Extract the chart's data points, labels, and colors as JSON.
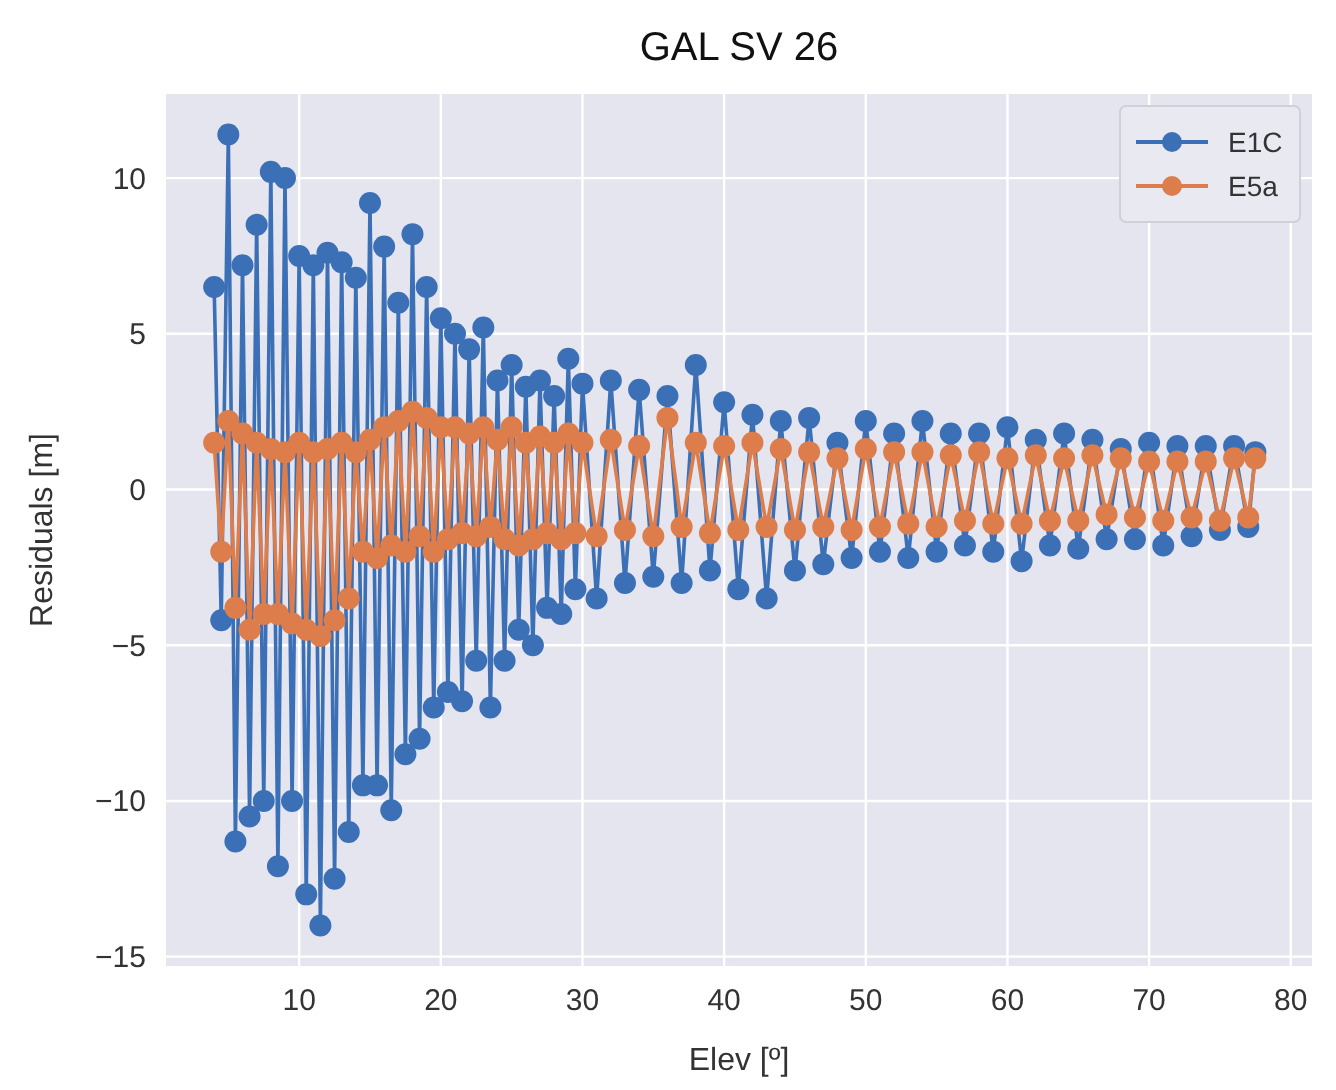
{
  "chart_data": {
    "type": "line",
    "title": "GAL SV 26",
    "xlabel": "Elev [º]",
    "ylabel": "Residuals [m]",
    "x": [
      4,
      4.5,
      5,
      5.5,
      6,
      6.5,
      7,
      7.5,
      8,
      8.5,
      9,
      9.5,
      10,
      10.5,
      11,
      11.5,
      12,
      12.5,
      13,
      13.5,
      14,
      14.5,
      15,
      15.5,
      16,
      16.5,
      17,
      17.5,
      18,
      18.5,
      19,
      19.5,
      20,
      20.5,
      21,
      21.5,
      22,
      22.5,
      23,
      23.5,
      24,
      24.5,
      25,
      25.5,
      26,
      26.5,
      27,
      27.5,
      28,
      28.5,
      29,
      29.5,
      30,
      31,
      32,
      33,
      34,
      35,
      36,
      37,
      38,
      39,
      40,
      41,
      42,
      43,
      44,
      45,
      46,
      47,
      48,
      49,
      50,
      51,
      52,
      53,
      54,
      55,
      56,
      57,
      58,
      59,
      60,
      61,
      62,
      63,
      64,
      65,
      66,
      67,
      68,
      69,
      70,
      71,
      72,
      73,
      74,
      75,
      76,
      77,
      77.5
    ],
    "series": [
      {
        "name": "E1C",
        "color": "#3b6fb6",
        "values": [
          6.5,
          -4.2,
          11.4,
          -11.3,
          7.2,
          -10.5,
          8.5,
          -10,
          10.2,
          -12.1,
          10,
          -10,
          7.5,
          -13,
          7.2,
          -14,
          7.6,
          -12.5,
          7.3,
          -11,
          6.8,
          -9.5,
          9.2,
          -9.5,
          7.8,
          -10.3,
          6,
          -8.5,
          8.2,
          -8,
          6.5,
          -7,
          5.5,
          -6.5,
          5,
          -6.8,
          4.5,
          -5.5,
          5.2,
          -7,
          3.5,
          -5.5,
          4,
          -4.5,
          3.3,
          -5,
          3.5,
          -3.8,
          3,
          -4,
          4.2,
          -3.2,
          3.4,
          -3.5,
          3.5,
          -3,
          3.2,
          -2.8,
          3,
          -3,
          4,
          -2.6,
          2.8,
          -3.2,
          2.4,
          -3.5,
          2.2,
          -2.6,
          2.3,
          -2.4,
          1.5,
          -2.2,
          2.2,
          -2,
          1.8,
          -2.2,
          2.2,
          -2,
          1.8,
          -1.8,
          1.8,
          -2,
          2,
          -2.3,
          1.6,
          -1.8,
          1.8,
          -1.9,
          1.6,
          -1.6,
          1.3,
          -1.6,
          1.5,
          -1.8,
          1.4,
          -1.5,
          1.4,
          -1.3,
          1.4,
          -1.2,
          1.2
        ]
      },
      {
        "name": "E5a",
        "color": "#dd7d4b",
        "values": [
          1.5,
          -2,
          2.2,
          -3.8,
          1.8,
          -4.5,
          1.5,
          -4,
          1.3,
          -4,
          1.2,
          -4.3,
          1.5,
          -4.5,
          1.2,
          -4.7,
          1.3,
          -4.2,
          1.5,
          -3.5,
          1.2,
          -2,
          1.6,
          -2.2,
          2,
          -1.8,
          2.2,
          -2,
          2.5,
          -1.5,
          2.3,
          -2,
          2,
          -1.6,
          2,
          -1.4,
          1.8,
          -1.5,
          2,
          -1.2,
          1.6,
          -1.6,
          2,
          -1.8,
          1.5,
          -1.6,
          1.7,
          -1.4,
          1.5,
          -1.6,
          1.8,
          -1.4,
          1.5,
          -1.5,
          1.6,
          -1.3,
          1.4,
          -1.5,
          2.3,
          -1.2,
          1.5,
          -1.4,
          1.4,
          -1.3,
          1.5,
          -1.2,
          1.3,
          -1.3,
          1.2,
          -1.2,
          1,
          -1.3,
          1.3,
          -1.2,
          1.2,
          -1.1,
          1.2,
          -1.2,
          1.1,
          -1,
          1.2,
          -1.1,
          1,
          -1.1,
          1.1,
          -1,
          1,
          -1,
          1.1,
          -0.8,
          1,
          -0.9,
          0.9,
          -1,
          0.9,
          -0.9,
          0.9,
          -1,
          1,
          -0.9,
          1
        ]
      }
    ],
    "xlim": [
      0.6,
      81.5
    ],
    "xticks": [
      10,
      20,
      30,
      40,
      50,
      60,
      70,
      80
    ],
    "ylim": [
      -15.3,
      12.7
    ],
    "yticks": [
      {
        "value": -15,
        "label": "−15"
      },
      {
        "value": -10,
        "label": "−10"
      },
      {
        "value": -5,
        "label": "−5"
      },
      0,
      5,
      10
    ],
    "grid": true,
    "legend": "top right",
    "marker": "circle",
    "line_style": "solid"
  }
}
